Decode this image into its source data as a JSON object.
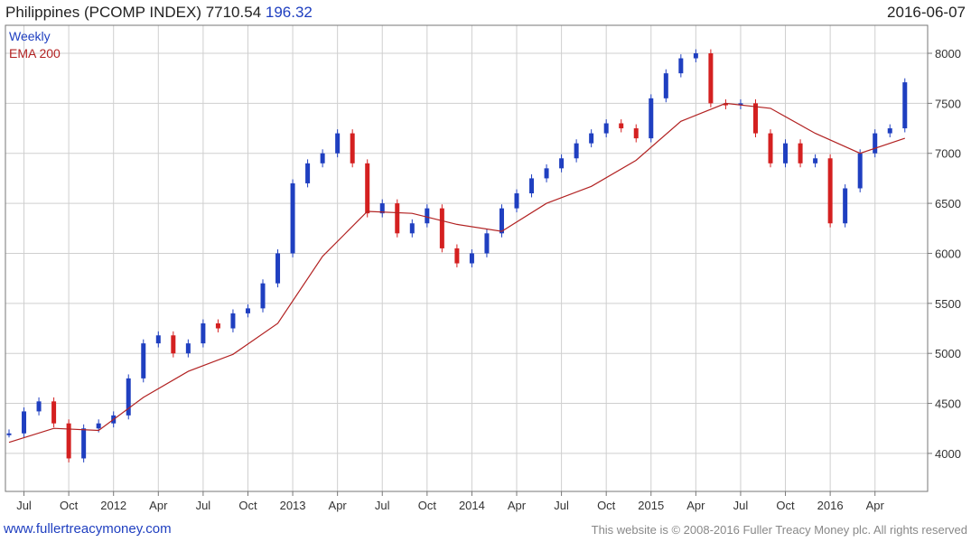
{
  "header": {
    "title": "Philippines (PCOMP INDEX) 7710.54",
    "change": "196.32",
    "date": "2016-06-07"
  },
  "footer": {
    "site": "www.fullertreacymoney.com",
    "rights": "This website is © 2008-2016 Fuller Treacy Money plc. All rights reserved"
  },
  "chart_data": {
    "type": "line",
    "title": "Philippines (PCOMP INDEX) 7710.54 196.32",
    "x_ticks": [
      "Jul",
      "Oct",
      "2012",
      "Apr",
      "Jul",
      "Oct",
      "2013",
      "Apr",
      "Jul",
      "Oct",
      "2014",
      "Apr",
      "Jul",
      "Oct",
      "2015",
      "Apr",
      "Jul",
      "Oct",
      "2016",
      "Apr"
    ],
    "y_ticks": [
      4000,
      4500,
      5000,
      5500,
      6000,
      6500,
      7000,
      7500,
      8000
    ],
    "ylim": [
      3620,
      8280
    ],
    "grid": true,
    "legend": [
      "Weekly",
      "EMA 200"
    ],
    "legend_position": "top-left",
    "series": [
      {
        "name": "Weekly",
        "kind": "candlestick-close",
        "color_up": "#1f3fc0",
        "color_down": "#d42020",
        "x": [
          "2011-06",
          "2011-07",
          "2011-08",
          "2011-09",
          "2011-10",
          "2011-11",
          "2011-12",
          "2012-01",
          "2012-02",
          "2012-03",
          "2012-04",
          "2012-05",
          "2012-06",
          "2012-07",
          "2012-08",
          "2012-09",
          "2012-10",
          "2012-11",
          "2012-12",
          "2013-01",
          "2013-02",
          "2013-03",
          "2013-04",
          "2013-05",
          "2013-06",
          "2013-07",
          "2013-08",
          "2013-09",
          "2013-10",
          "2013-11",
          "2013-12",
          "2014-01",
          "2014-02",
          "2014-03",
          "2014-04",
          "2014-05",
          "2014-06",
          "2014-07",
          "2014-08",
          "2014-09",
          "2014-10",
          "2014-11",
          "2014-12",
          "2015-01",
          "2015-02",
          "2015-03",
          "2015-04",
          "2015-05",
          "2015-06",
          "2015-07",
          "2015-08",
          "2015-09",
          "2015-10",
          "2015-11",
          "2015-12",
          "2016-01",
          "2016-02",
          "2016-03",
          "2016-04",
          "2016-05",
          "2016-06"
        ],
        "values": [
          4200,
          4420,
          4520,
          4300,
          3950,
          4250,
          4300,
          4380,
          4750,
          5100,
          5180,
          5000,
          5100,
          5300,
          5250,
          5400,
          5450,
          5700,
          6000,
          6700,
          6900,
          7000,
          7200,
          6900,
          6400,
          6500,
          6200,
          6300,
          6450,
          6050,
          5900,
          6000,
          6200,
          6450,
          6600,
          6750,
          6850,
          6950,
          7100,
          7200,
          7300,
          7250,
          7150,
          7550,
          7800,
          7950,
          8000,
          7500,
          7480,
          7500,
          7200,
          6900,
          7100,
          6900,
          6950,
          6300,
          6650,
          7000,
          7200,
          7250,
          7710
        ]
      },
      {
        "name": "EMA 200",
        "kind": "line",
        "color": "#b22222",
        "x": [
          "2011-06",
          "2011-09",
          "2011-12",
          "2012-03",
          "2012-06",
          "2012-09",
          "2012-12",
          "2013-03",
          "2013-06",
          "2013-09",
          "2013-12",
          "2014-03",
          "2014-06",
          "2014-09",
          "2014-12",
          "2015-03",
          "2015-06",
          "2015-09",
          "2015-12",
          "2016-03",
          "2016-06"
        ],
        "values": [
          4110,
          4250,
          4230,
          4560,
          4820,
          4990,
          5300,
          5970,
          6420,
          6400,
          6290,
          6220,
          6500,
          6670,
          6930,
          7320,
          7500,
          7450,
          7200,
          7000,
          7150
        ]
      }
    ]
  }
}
